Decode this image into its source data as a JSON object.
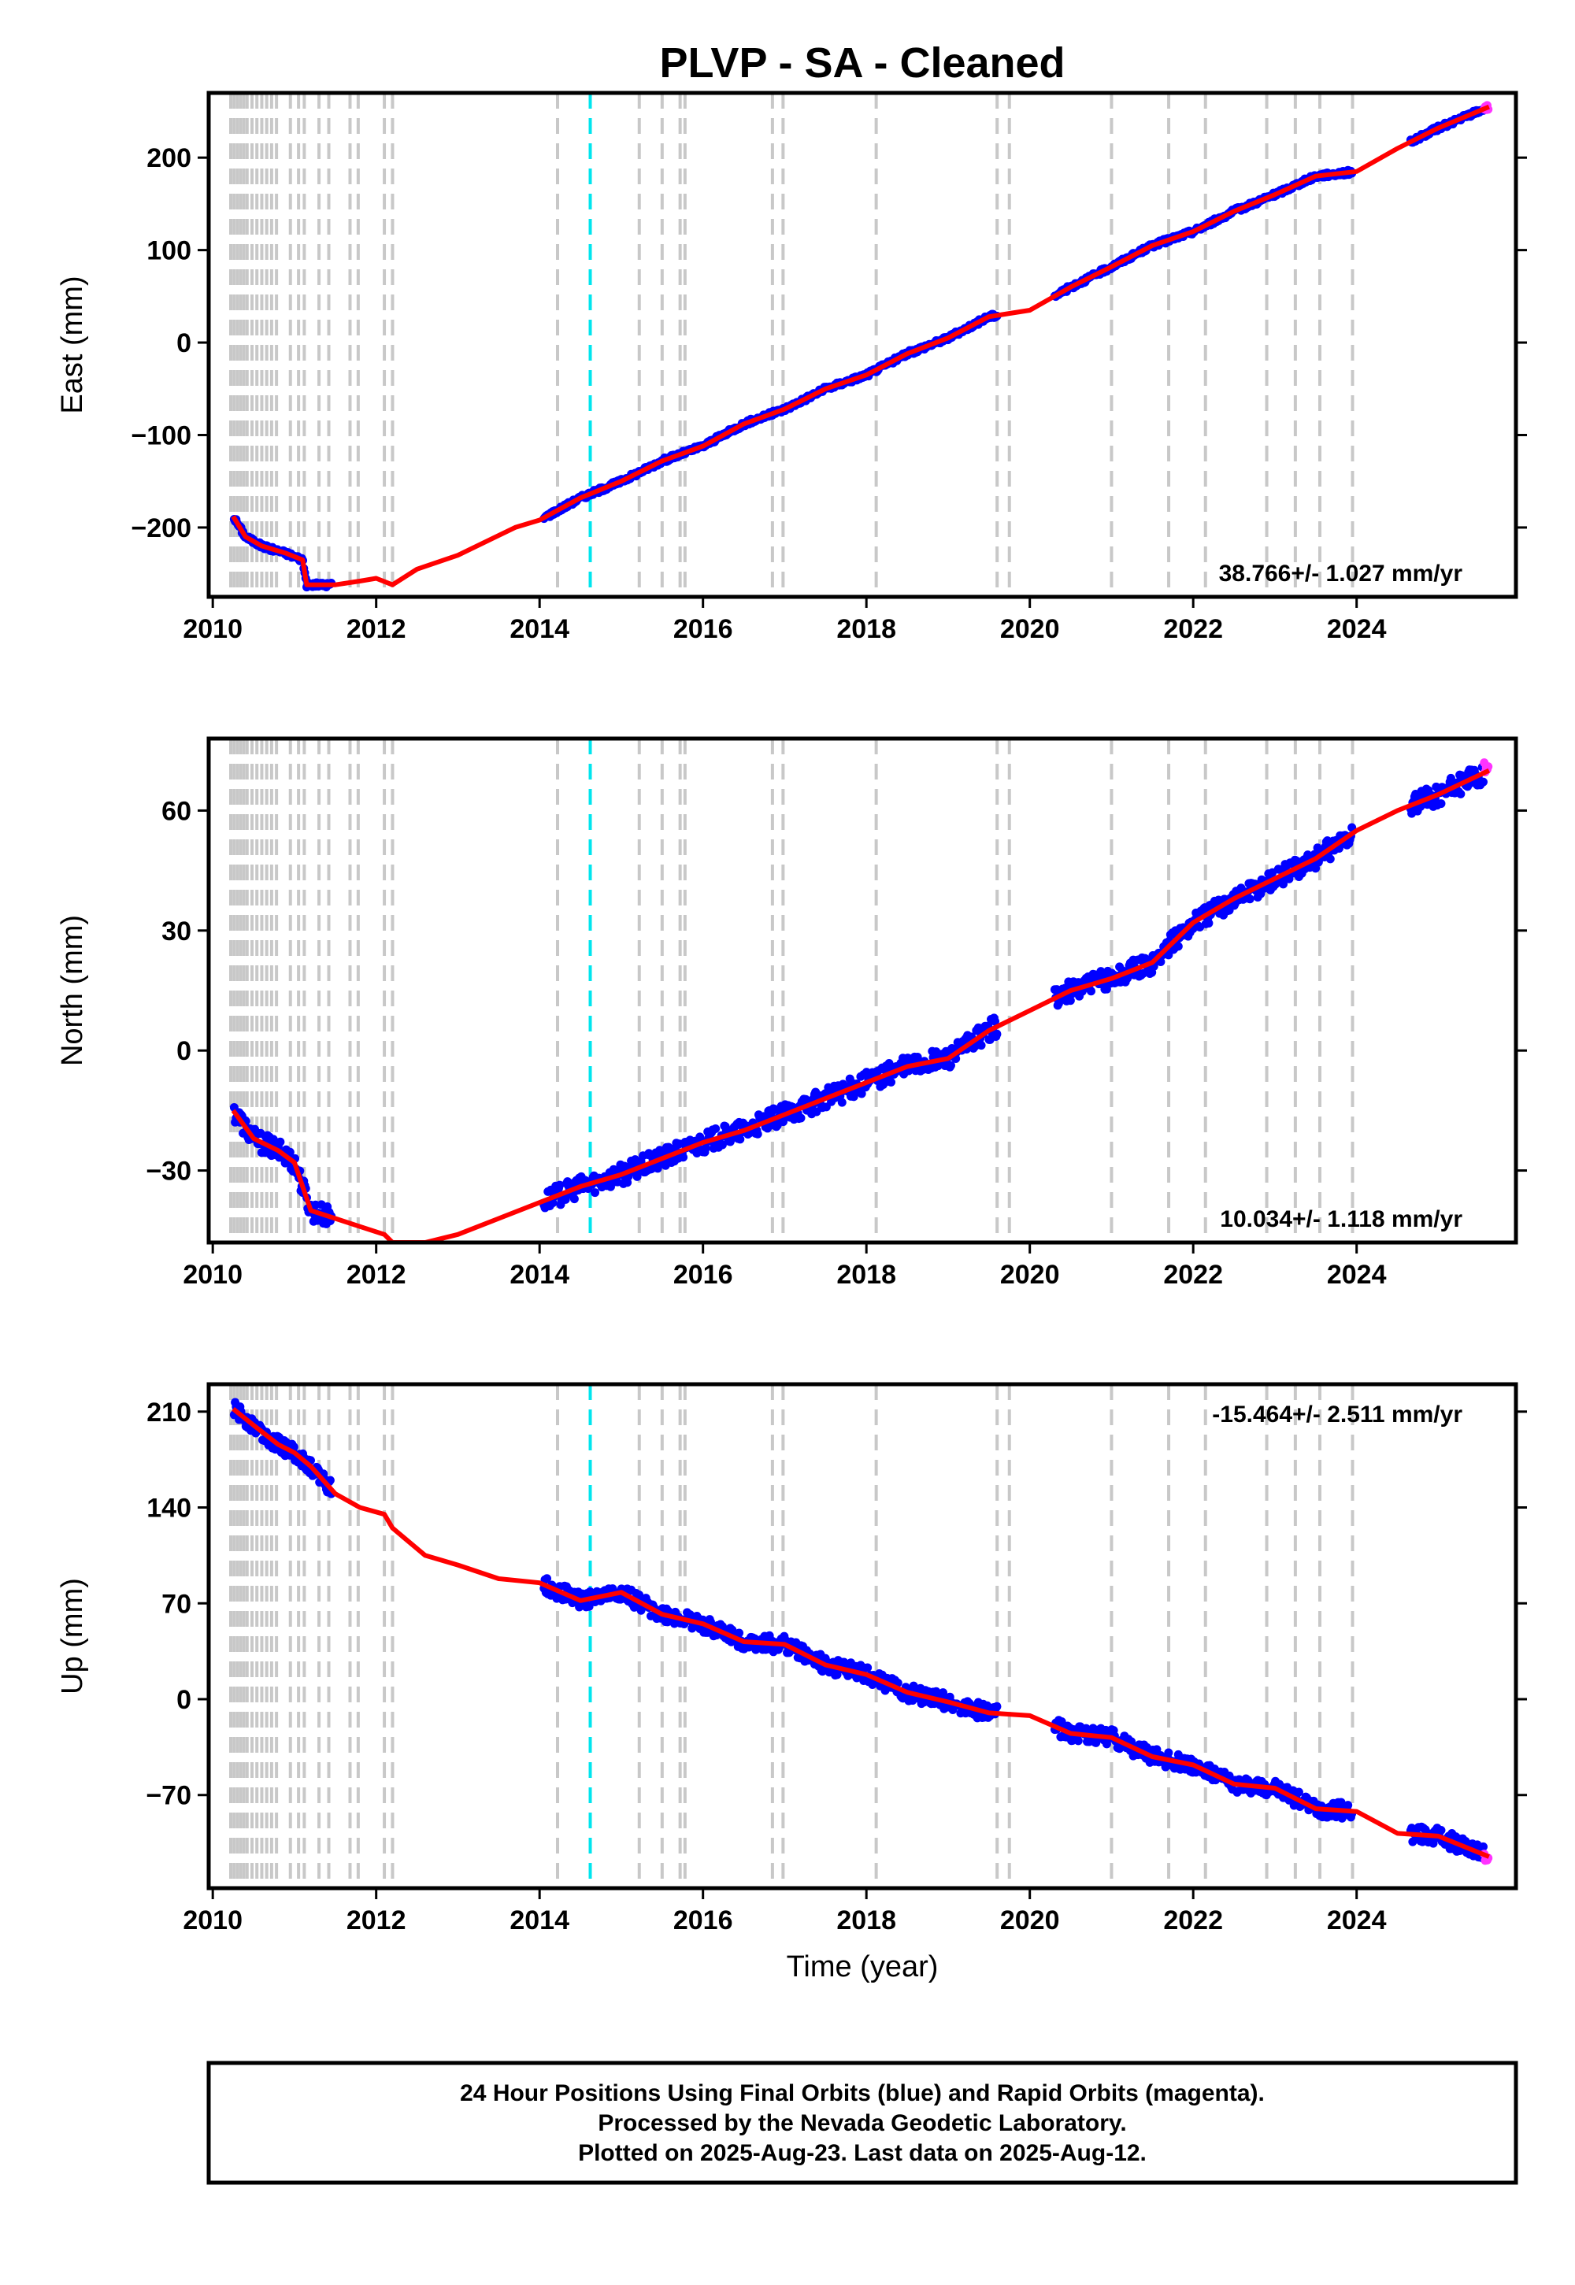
{
  "title": "PLVP  - SA - Cleaned",
  "footer": {
    "line1": "24 Hour Positions Using Final Orbits (blue) and Rapid Orbits (magenta).",
    "line2": "Processed by the Nevada Geodetic Laboratory.",
    "line3": "Plotted on 2025-Aug-23. Last data on 2025-Aug-12."
  },
  "colors": {
    "final_orbits": "#0000ff",
    "rapid_orbits": "#ff33ff",
    "model": "#ff0000",
    "event_line": "#c8c8c8",
    "highlight_event": "#00e5ee"
  },
  "xlabel": "Time (year)",
  "xticks": [
    "2010",
    "2012",
    "2014",
    "2016",
    "2018",
    "2020",
    "2022",
    "2024"
  ],
  "chart_data": [
    {
      "type": "scatter",
      "component": "East",
      "ylabel": "East (mm)",
      "xlim": [
        2009.95,
        2025.95
      ],
      "ylim": [
        -275,
        270
      ],
      "yticks": [
        200,
        100,
        0,
        -100,
        -200
      ],
      "ytick_labels": [
        "200",
        "100",
        "0",
        "−100",
        "−200"
      ],
      "rate_text": "38.766+/- 1.027 mm/yr",
      "rate_position": "bottom-right",
      "series": [
        {
          "values_x": [
            2010.25,
            2010.4,
            2010.6,
            2010.9,
            2011.1,
            2011.15,
            2011.5,
            2011.8,
            2012.0,
            2012.2,
            2012.5,
            2013.0,
            2013.7,
            2014.0,
            2014.5,
            2015.0,
            2015.5,
            2016.0,
            2016.5,
            2017.0,
            2017.5,
            2018.0,
            2018.5,
            2019.0,
            2019.5,
            2020.0,
            2020.5,
            2021.0,
            2021.5,
            2022.0,
            2022.5,
            2023.0,
            2023.5,
            2024.0,
            2024.5,
            2025.0,
            2025.62
          ],
          "values_y": [
            -188,
            -210,
            -220,
            -228,
            -235,
            -262,
            -262,
            -258,
            -255,
            -262,
            -245,
            -230,
            -200,
            -192,
            -168,
            -150,
            -128,
            -112,
            -88,
            -72,
            -50,
            -35,
            -12,
            5,
            28,
            35,
            60,
            82,
            105,
            120,
            142,
            160,
            180,
            185,
            210,
            232,
            255
          ]
        }
      ]
    },
    {
      "type": "scatter",
      "component": "North",
      "ylabel": "North (mm)",
      "xlim": [
        2009.95,
        2025.95
      ],
      "ylim": [
        -48,
        78
      ],
      "yticks": [
        60,
        30,
        0,
        -30
      ],
      "ytick_labels": [
        "60",
        "30",
        "0",
        "−30"
      ],
      "rate_text": "10.034+/- 1.118 mm/yr",
      "rate_position": "bottom-right",
      "series": [
        {
          "values_x": [
            2010.25,
            2010.5,
            2010.8,
            2011.0,
            2011.2,
            2011.5,
            2011.8,
            2012.1,
            2012.2,
            2012.6,
            2013.0,
            2013.5,
            2014.0,
            2014.5,
            2015.0,
            2015.5,
            2016.0,
            2016.5,
            2017.0,
            2017.5,
            2018.0,
            2018.5,
            2019.0,
            2019.5,
            2020.0,
            2020.5,
            2021.0,
            2021.5,
            2022.0,
            2022.5,
            2023.0,
            2023.5,
            2024.0,
            2024.5,
            2025.0,
            2025.62
          ],
          "values_y": [
            -15,
            -22,
            -25,
            -28,
            -40,
            -42,
            -44,
            -46,
            -48,
            -48,
            -46,
            -42,
            -38,
            -34,
            -31,
            -27,
            -23,
            -20,
            -16,
            -12,
            -8,
            -4,
            -2,
            5,
            10,
            15,
            18,
            22,
            32,
            38,
            43,
            48,
            55,
            60,
            64,
            70
          ]
        }
      ]
    },
    {
      "type": "scatter",
      "component": "Up",
      "ylabel": "Up (mm)",
      "xlim": [
        2009.95,
        2025.95
      ],
      "ylim": [
        -138,
        230
      ],
      "yticks": [
        210,
        140,
        70,
        0,
        -70
      ],
      "ytick_labels": [
        "210",
        "140",
        "70",
        "0",
        "−70"
      ],
      "rate_text": "-15.464+/- 2.511 mm/yr",
      "rate_position": "top-right",
      "series": [
        {
          "values_x": [
            2010.25,
            2010.5,
            2010.8,
            2011.0,
            2011.2,
            2011.5,
            2011.8,
            2012.1,
            2012.2,
            2012.6,
            2013.0,
            2013.5,
            2014.0,
            2014.5,
            2015.0,
            2015.5,
            2016.0,
            2016.5,
            2017.0,
            2017.5,
            2018.0,
            2018.5,
            2019.0,
            2019.5,
            2020.0,
            2020.5,
            2021.0,
            2021.5,
            2022.0,
            2022.5,
            2023.0,
            2023.5,
            2024.0,
            2024.5,
            2025.0,
            2025.62
          ],
          "values_y": [
            212,
            200,
            186,
            180,
            170,
            150,
            140,
            135,
            125,
            105,
            98,
            88,
            85,
            72,
            78,
            62,
            55,
            42,
            40,
            25,
            18,
            5,
            -2,
            -10,
            -12,
            -25,
            -28,
            -42,
            -48,
            -62,
            -65,
            -80,
            -82,
            -98,
            -100,
            -115
          ]
        }
      ]
    }
  ],
  "event_years": [
    2010.22,
    2010.26,
    2010.3,
    2010.34,
    2010.38,
    2010.42,
    2010.48,
    2010.54,
    2010.6,
    2010.66,
    2010.72,
    2010.78,
    2010.95,
    2011.05,
    2011.12,
    2011.3,
    2011.42,
    2011.68,
    2011.78,
    2012.1,
    2012.2,
    2014.22,
    2015.22,
    2015.5,
    2015.72,
    2015.78,
    2016.85,
    2016.98,
    2018.12,
    2019.6,
    2019.75,
    2021.0,
    2021.7,
    2022.15,
    2022.9,
    2023.25,
    2023.55,
    2023.95
  ],
  "highlight_event_year": 2014.62
}
